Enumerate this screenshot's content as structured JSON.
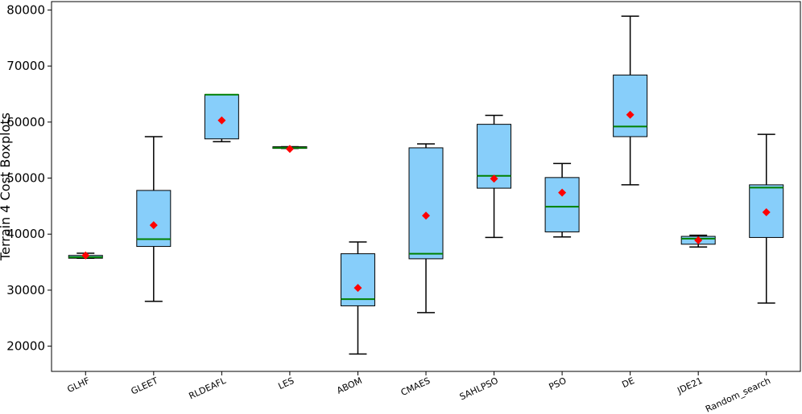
{
  "chart_data": {
    "type": "boxplot",
    "title": "",
    "xlabel": "",
    "ylabel": "Terrain 4 Cost Boxplots",
    "ylim": [
      15500,
      81500
    ],
    "yticks": [
      20000,
      30000,
      40000,
      50000,
      60000,
      70000,
      80000
    ],
    "categories": [
      "GLHF",
      "GLEET",
      "RLDEAFL",
      "LES",
      "ABOM",
      "CMAES",
      "SAHLPSO",
      "PSO",
      "DE",
      "JDE21",
      "Random_search"
    ],
    "boxes": [
      {
        "label": "GLHF",
        "whisker_low": 35700,
        "q1": 35700,
        "median": 35900,
        "q3": 36200,
        "whisker_high": 36600,
        "mean": 36200
      },
      {
        "label": "GLEET",
        "whisker_low": 28000,
        "q1": 37800,
        "median": 39100,
        "q3": 47800,
        "whisker_high": 57400,
        "mean": 41600
      },
      {
        "label": "RLDEAFL",
        "whisker_low": 56500,
        "q1": 57000,
        "median": 64900,
        "q3": 64900,
        "whisker_high": 64900,
        "mean": 60300
      },
      {
        "label": "LES",
        "whisker_low": 55300,
        "q1": 55300,
        "median": 55400,
        "q3": 55600,
        "whisker_high": 55600,
        "mean": 55200
      },
      {
        "label": "ABOM",
        "whisker_low": 18600,
        "q1": 27200,
        "median": 28400,
        "q3": 36500,
        "whisker_high": 38600,
        "mean": 30400
      },
      {
        "label": "CMAES",
        "whisker_low": 26000,
        "q1": 35600,
        "median": 36500,
        "q3": 55400,
        "whisker_high": 56100,
        "mean": 43300
      },
      {
        "label": "SAHLPSO",
        "whisker_low": 39400,
        "q1": 48200,
        "median": 50400,
        "q3": 59600,
        "whisker_high": 61200,
        "mean": 49900
      },
      {
        "label": "PSO",
        "whisker_low": 39500,
        "q1": 40400,
        "median": 44900,
        "q3": 50100,
        "whisker_high": 52600,
        "mean": 47400
      },
      {
        "label": "DE",
        "whisker_low": 48800,
        "q1": 57400,
        "median": 59200,
        "q3": 68400,
        "whisker_high": 78900,
        "mean": 61300
      },
      {
        "label": "JDE21",
        "whisker_low": 37700,
        "q1": 38200,
        "median": 39200,
        "q3": 39600,
        "whisker_high": 39800,
        "mean": 38900
      },
      {
        "label": "Random_search",
        "whisker_low": 27700,
        "q1": 39400,
        "median": 48300,
        "q3": 48800,
        "whisker_high": 57800,
        "mean": 43900
      }
    ],
    "colors": {
      "box_fill": "#87CEFA",
      "box_edge": "#000000",
      "median": "#008000",
      "mean_marker": "#FF0000",
      "whisker": "#000000"
    },
    "grid": false,
    "legend": "none"
  }
}
